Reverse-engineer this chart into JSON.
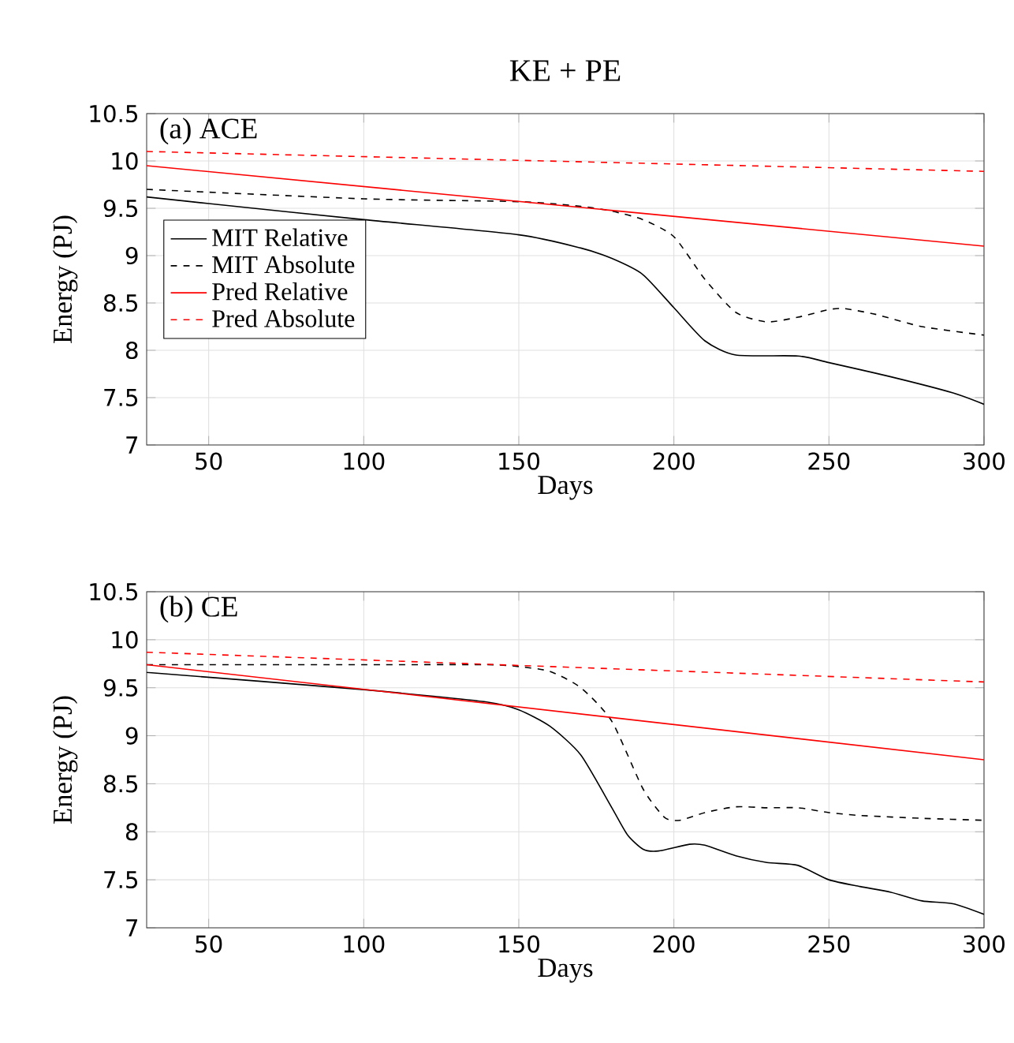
{
  "chart_data": [
    {
      "type": "line",
      "title": "$KE + PE$",
      "xlabel": "Days",
      "ylabel": "Energy (PJ)",
      "annotations": [
        "(a) ACE"
      ],
      "xlim": [
        30,
        300
      ],
      "xticks": [
        50,
        100,
        150,
        200,
        250,
        300
      ],
      "ylim": [
        7,
        10.5
      ],
      "yticks": [
        7,
        7.5,
        8,
        8.5,
        9,
        9.5,
        10,
        10.5
      ],
      "grid": true,
      "legend": "left",
      "series": [
        {
          "name": "MIT Relative",
          "color": "#000000",
          "line_style": "solid",
          "x": [
            30,
            50,
            100,
            150,
            170,
            180,
            190,
            200,
            210,
            220,
            240,
            250,
            270,
            290,
            300
          ],
          "values": [
            9.62,
            9.55,
            9.38,
            9.22,
            9.08,
            8.97,
            8.8,
            8.45,
            8.1,
            7.95,
            7.94,
            7.87,
            7.72,
            7.55,
            7.43
          ]
        },
        {
          "name": "MIT Absolute",
          "color": "#000000",
          "line_style": "dashed",
          "x": [
            30,
            100,
            150,
            170,
            180,
            190,
            200,
            210,
            220,
            230,
            240,
            250,
            255,
            265,
            280,
            300
          ],
          "values": [
            9.7,
            9.6,
            9.57,
            9.52,
            9.47,
            9.38,
            9.2,
            8.75,
            8.4,
            8.3,
            8.35,
            8.43,
            8.44,
            8.38,
            8.25,
            8.16
          ]
        },
        {
          "name": "Pred Relative",
          "color": "#ff0000",
          "line_style": "solid",
          "x": [
            30,
            300
          ],
          "values": [
            9.95,
            9.1
          ]
        },
        {
          "name": "Pred Absolute",
          "color": "#ff0000",
          "line_style": "dashed",
          "x": [
            30,
            300
          ],
          "values": [
            10.1,
            9.89
          ]
        }
      ]
    },
    {
      "type": "line",
      "xlabel": "Days",
      "ylabel": "Energy (PJ)",
      "annotations": [
        "(b) CE"
      ],
      "xlim": [
        30,
        300
      ],
      "xticks": [
        50,
        100,
        150,
        200,
        250,
        300
      ],
      "ylim": [
        7,
        10.5
      ],
      "yticks": [
        7,
        7.5,
        8,
        8.5,
        9,
        9.5,
        10,
        10.5
      ],
      "grid": true,
      "series": [
        {
          "color": "#000000",
          "line_style": "solid",
          "x": [
            30,
            100,
            140,
            150,
            160,
            170,
            180,
            185,
            190,
            195,
            205,
            210,
            220,
            230,
            240,
            250,
            260,
            270,
            280,
            290,
            300
          ],
          "values": [
            9.66,
            9.48,
            9.35,
            9.27,
            9.1,
            8.8,
            8.25,
            7.97,
            7.82,
            7.8,
            7.87,
            7.86,
            7.75,
            7.68,
            7.65,
            7.5,
            7.43,
            7.37,
            7.28,
            7.25,
            7.14
          ]
        },
        {
          "color": "#000000",
          "line_style": "dashed",
          "x": [
            30,
            100,
            140,
            150,
            160,
            170,
            180,
            190,
            197,
            202,
            210,
            220,
            230,
            240,
            250,
            260,
            280,
            300
          ],
          "values": [
            9.74,
            9.74,
            9.74,
            9.72,
            9.67,
            9.5,
            9.15,
            8.45,
            8.15,
            8.12,
            8.2,
            8.26,
            8.25,
            8.25,
            8.2,
            8.17,
            8.14,
            8.12
          ]
        },
        {
          "color": "#ff0000",
          "line_style": "solid",
          "x": [
            30,
            300
          ],
          "values": [
            9.74,
            8.75
          ]
        },
        {
          "color": "#ff0000",
          "line_style": "dashed",
          "x": [
            30,
            300
          ],
          "values": [
            9.87,
            9.56
          ]
        }
      ]
    }
  ]
}
